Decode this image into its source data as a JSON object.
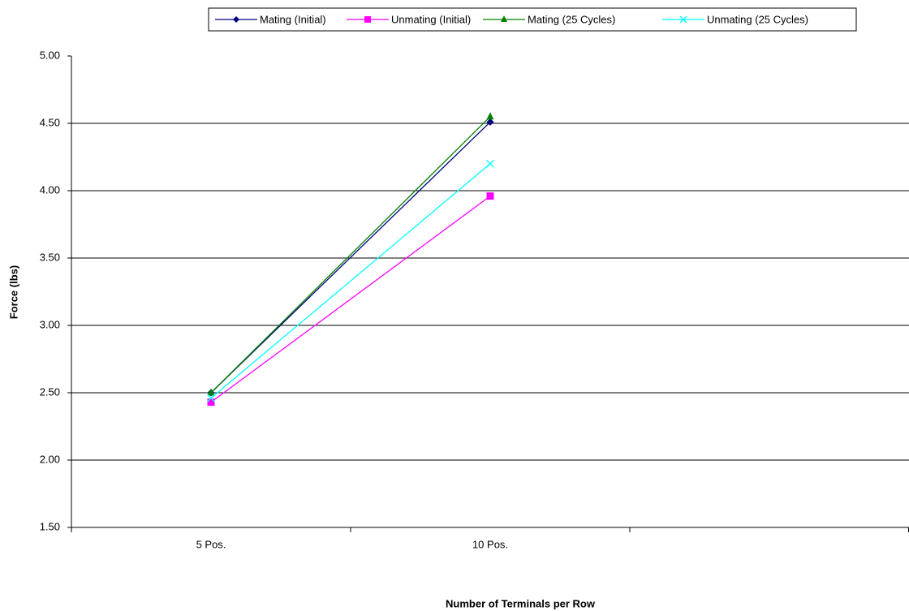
{
  "chart_data": {
    "type": "line",
    "x_label": "Number of Terminals per Row",
    "y_label": "Force (lbs)",
    "categories": [
      "5 Pos.",
      "10 Pos.",
      null
    ],
    "series": [
      {
        "name": "Mating (Initial)",
        "color": "#000080",
        "marker": "diamond",
        "values": [
          2.5,
          4.51,
          null
        ]
      },
      {
        "name": "Unmating (Initial)",
        "color": "#ff00ff",
        "marker": "square",
        "values": [
          2.43,
          3.96,
          null
        ]
      },
      {
        "name": "Mating (25 Cycles)",
        "color": "#008000",
        "marker": "triangle",
        "values": [
          2.5,
          4.55,
          null
        ]
      },
      {
        "name": "Unmating (25 Cycles)",
        "color": "#00ffff",
        "marker": "x",
        "values": [
          2.46,
          4.2,
          null
        ]
      }
    ],
    "ylim": [
      1.5,
      5.0
    ],
    "yticks": [
      {
        "value": 1.5,
        "label": "1.50"
      },
      {
        "value": 2.0,
        "label": "2.00"
      },
      {
        "value": 2.5,
        "label": "2.50"
      },
      {
        "value": 3.0,
        "label": "3.00"
      },
      {
        "value": 3.5,
        "label": "3.50"
      },
      {
        "value": 4.0,
        "label": "4.00"
      },
      {
        "value": 4.5,
        "label": "4.50"
      },
      {
        "value": 5.0,
        "label": "5.00"
      }
    ],
    "grid": true,
    "legend": "top"
  }
}
